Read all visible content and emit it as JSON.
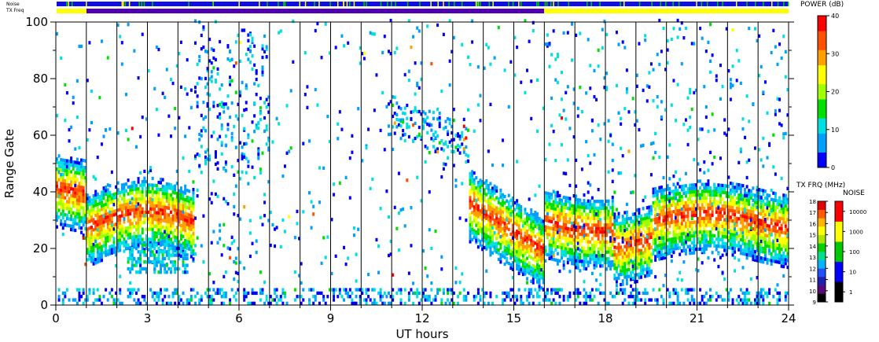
{
  "chart_data": {
    "type": "heatmap",
    "xlabel": "UT hours",
    "ylabel": "Range Gate",
    "xlim": [
      0,
      24
    ],
    "ylim": [
      0,
      100
    ],
    "x_ticks": [
      0,
      3,
      6,
      9,
      12,
      15,
      18,
      21,
      24
    ],
    "y_ticks": [
      0,
      20,
      40,
      60,
      80,
      100
    ],
    "status_labels": {
      "noise": "Noise",
      "tx_freq": "TX Freq"
    },
    "power_colorbar": {
      "title": "POWER (dB)",
      "ticks": [
        0,
        10,
        20,
        30,
        40
      ]
    },
    "tx_freq_colorbar": {
      "title": "TX FRQ (MHz)",
      "ticks": [
        9,
        10,
        11,
        12,
        13,
        14,
        15,
        16,
        17,
        18
      ]
    },
    "noise_colorbar": {
      "title": "NOISE",
      "ticks": [
        "1",
        "10",
        "100",
        "1000",
        "10000"
      ]
    },
    "colors": {
      "power_scale": [
        "#0000ff",
        "#00a0ff",
        "#00e0e0",
        "#00e000",
        "#a0ff00",
        "#ffff00",
        "#ffa000",
        "#ff5000",
        "#ff0000"
      ],
      "freq_scale": [
        "#000000",
        "#5a0a78",
        "#2020b0",
        "#1e50ff",
        "#00b4ff",
        "#00e08c",
        "#00d200",
        "#aae600",
        "#ffff00",
        "#ffb400",
        "#ff5a00",
        "#e60000"
      ],
      "noise_scale": [
        "#000000",
        "#0000ff",
        "#00c800",
        "#ffff00",
        "#ff0000"
      ],
      "noise_track": "#1010d8",
      "tx_track_1": "#ffff00",
      "tx_track_2": "#5000b0",
      "tx_track_3": "#ffff00"
    }
  }
}
